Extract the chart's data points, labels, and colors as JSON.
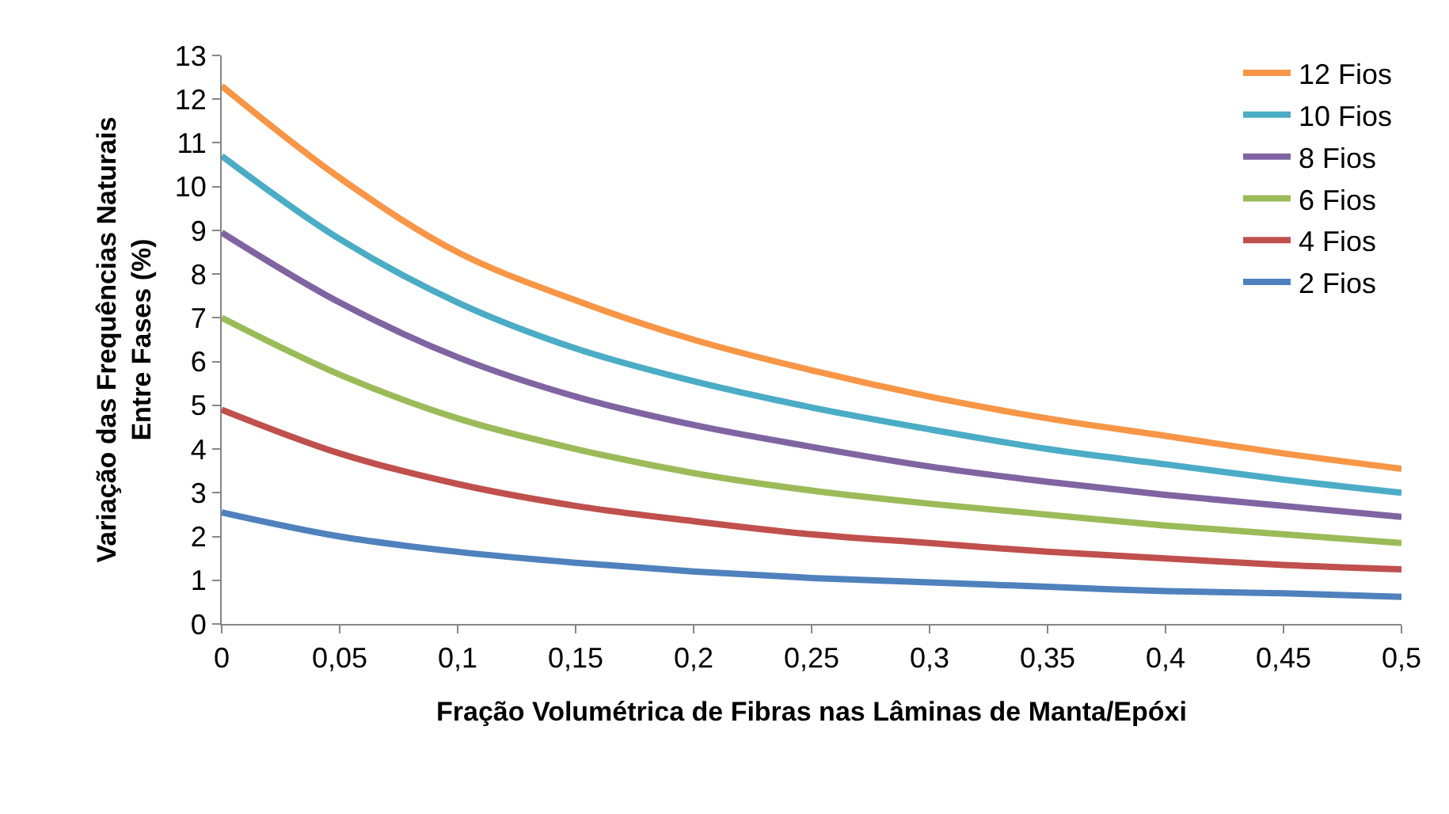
{
  "chart_data": {
    "type": "line",
    "xlabel": "Fração Volumétrica de Fibras nas Lâminas de Manta/Epóxi",
    "ylabel": "Variação das Frequências Naturais\nEntre Fases (%)",
    "x": [
      0,
      0.05,
      0.1,
      0.15,
      0.2,
      0.25,
      0.3,
      0.35,
      0.4,
      0.45,
      0.5
    ],
    "series": [
      {
        "name": "12 Fios",
        "color": "#f79646",
        "values": [
          12.3,
          10.2,
          8.5,
          7.4,
          6.5,
          5.8,
          5.2,
          4.7,
          4.3,
          3.9,
          3.55
        ]
      },
      {
        "name": "10 Fios",
        "color": "#4bacc6",
        "values": [
          10.7,
          8.8,
          7.35,
          6.3,
          5.55,
          4.95,
          4.45,
          4.0,
          3.65,
          3.3,
          3.0
        ]
      },
      {
        "name": "8 Fios",
        "color": "#8064a2",
        "values": [
          8.95,
          7.35,
          6.1,
          5.2,
          4.55,
          4.05,
          3.6,
          3.25,
          2.95,
          2.7,
          2.45
        ]
      },
      {
        "name": "6 Fios",
        "color": "#9bbb59",
        "values": [
          7.0,
          5.7,
          4.7,
          4.0,
          3.45,
          3.05,
          2.75,
          2.5,
          2.25,
          2.05,
          1.85
        ]
      },
      {
        "name": "4 Fios",
        "color": "#c0504d",
        "values": [
          4.9,
          3.9,
          3.2,
          2.7,
          2.35,
          2.05,
          1.85,
          1.65,
          1.5,
          1.35,
          1.25
        ]
      },
      {
        "name": "2 Fios",
        "color": "#4f81bd",
        "values": [
          2.55,
          2.0,
          1.65,
          1.4,
          1.2,
          1.05,
          0.95,
          0.85,
          0.75,
          0.7,
          0.62
        ]
      }
    ],
    "xlim": [
      0,
      0.5
    ],
    "xticks": [
      {
        "value": 0,
        "label": "0"
      },
      {
        "value": 0.05,
        "label": "0,05"
      },
      {
        "value": 0.1,
        "label": "0,1"
      },
      {
        "value": 0.15,
        "label": "0,15"
      },
      {
        "value": 0.2,
        "label": "0,2"
      },
      {
        "value": 0.25,
        "label": "0,25"
      },
      {
        "value": 0.3,
        "label": "0,3"
      },
      {
        "value": 0.35,
        "label": "0,35"
      },
      {
        "value": 0.4,
        "label": "0,4"
      },
      {
        "value": 0.45,
        "label": "0,45"
      },
      {
        "value": 0.5,
        "label": "0,5"
      }
    ],
    "ylim": [
      0,
      13
    ],
    "yticks": [
      0,
      1,
      2,
      3,
      4,
      5,
      6,
      7,
      8,
      9,
      10,
      11,
      12,
      13
    ],
    "legend": "top right",
    "marker": "none",
    "line_style": "solid"
  }
}
